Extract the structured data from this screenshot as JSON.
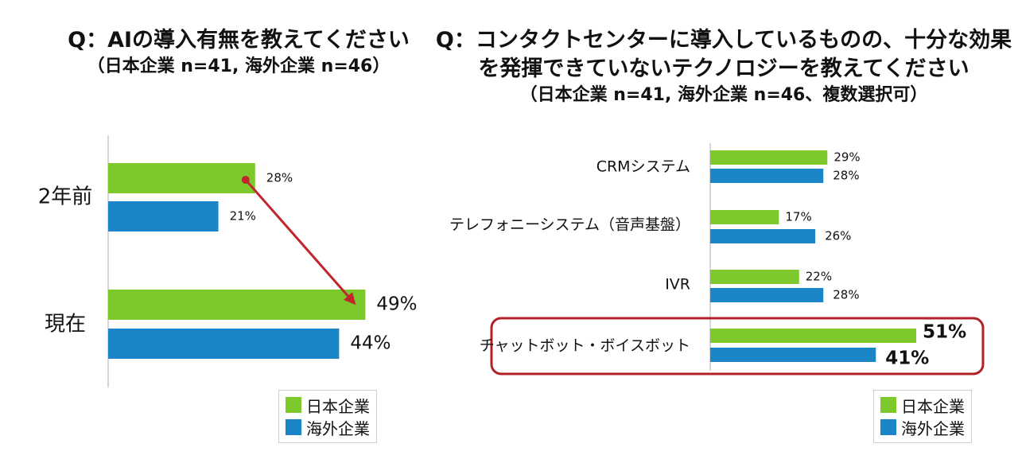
{
  "left_title": {
    "line1": "Q：AIの導入有無を教えてください",
    "line2": "（日本企業 n=41, 海外企業 n=46）"
  },
  "right_title": {
    "line1": "Q：コンタクトセンターに導入しているものの、十分な効果",
    "line2": "を発揮できていないテクノロジーを教えてください",
    "line3": "（日本企業 n=41, 海外企業 n=46、複数選択可）"
  },
  "legend": {
    "japan": "日本企業",
    "overseas": "海外企業"
  },
  "colors": {
    "japan": "#7dc92c",
    "overseas": "#1a86c8",
    "arrow": "#c0272d",
    "highlight": "#b3202a",
    "axis": "#c8c8c8"
  },
  "chart_data": [
    {
      "type": "bar",
      "orientation": "horizontal",
      "categories": [
        "2年前",
        "現在"
      ],
      "series": [
        {
          "name": "日本企業",
          "values": [
            28,
            49
          ],
          "labels": [
            "28%",
            "49%"
          ]
        },
        {
          "name": "海外企業",
          "values": [
            21,
            44
          ],
          "labels": [
            "21%",
            "44%"
          ]
        }
      ],
      "xlim": [
        0,
        62
      ],
      "legend_position": "bottom-right",
      "annotation": "arrow from 2年前 日本企業 (28%) to 現在 日本企業 (49%)"
    },
    {
      "type": "bar",
      "orientation": "horizontal",
      "categories": [
        "CRMシステム",
        "テレフォニーシステム（音声基盤）",
        "IVR",
        "チャットボット・ボイスボット"
      ],
      "series": [
        {
          "name": "日本企業",
          "values": [
            29,
            17,
            22,
            51
          ],
          "labels": [
            "29%",
            "17%",
            "22%",
            "51%"
          ]
        },
        {
          "name": "海外企業",
          "values": [
            28,
            26,
            28,
            41
          ],
          "labels": [
            "28%",
            "26%",
            "28%",
            "41%"
          ]
        }
      ],
      "xlim": [
        0,
        60
      ],
      "legend_position": "bottom-right",
      "highlighted_category": "チャットボット・ボイスボット"
    }
  ]
}
